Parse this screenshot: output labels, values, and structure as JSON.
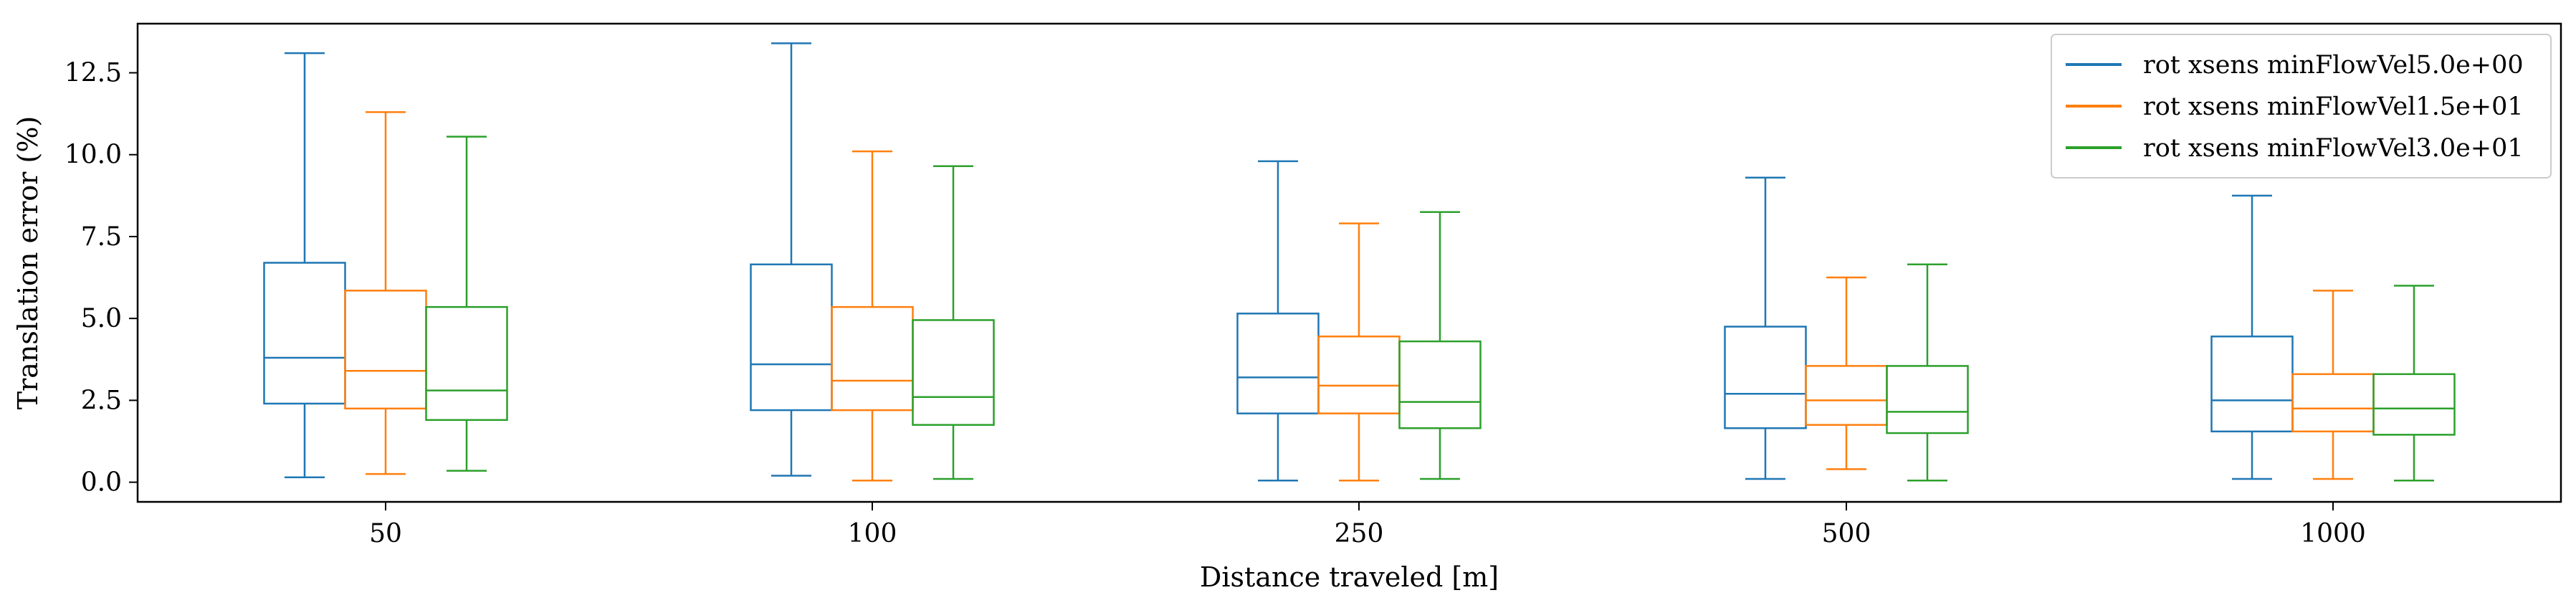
{
  "chart_data": {
    "type": "box",
    "xlabel": "Distance traveled [m]",
    "ylabel": "Translation error (%)",
    "ylim": [
      -0.6,
      14.0
    ],
    "yticks": [
      "0.0",
      "2.5",
      "5.0",
      "7.5",
      "10.0",
      "12.5"
    ],
    "categories": [
      "50",
      "100",
      "250",
      "500",
      "1000"
    ],
    "legend_position": "top-right",
    "grid": false,
    "series": [
      {
        "name": "rot xsens minFlowVel5.0e+00",
        "color": "#1f77b4",
        "boxes": [
          {
            "whisker_low": 0.15,
            "q1": 2.4,
            "median": 3.8,
            "q3": 6.7,
            "whisker_high": 13.1
          },
          {
            "whisker_low": 0.2,
            "q1": 2.2,
            "median": 3.6,
            "q3": 6.65,
            "whisker_high": 13.4
          },
          {
            "whisker_low": 0.05,
            "q1": 2.1,
            "median": 3.2,
            "q3": 5.15,
            "whisker_high": 9.8
          },
          {
            "whisker_low": 0.1,
            "q1": 1.65,
            "median": 2.7,
            "q3": 4.75,
            "whisker_high": 9.3
          },
          {
            "whisker_low": 0.1,
            "q1": 1.55,
            "median": 2.5,
            "q3": 4.45,
            "whisker_high": 8.75
          }
        ]
      },
      {
        "name": "rot xsens minFlowVel1.5e+01",
        "color": "#ff7f0e",
        "boxes": [
          {
            "whisker_low": 0.25,
            "q1": 2.25,
            "median": 3.4,
            "q3": 5.85,
            "whisker_high": 11.3
          },
          {
            "whisker_low": 0.05,
            "q1": 2.2,
            "median": 3.1,
            "q3": 5.35,
            "whisker_high": 10.1
          },
          {
            "whisker_low": 0.05,
            "q1": 2.1,
            "median": 2.95,
            "q3": 4.45,
            "whisker_high": 7.9
          },
          {
            "whisker_low": 0.4,
            "q1": 1.75,
            "median": 2.5,
            "q3": 3.55,
            "whisker_high": 6.25
          },
          {
            "whisker_low": 0.1,
            "q1": 1.55,
            "median": 2.25,
            "q3": 3.3,
            "whisker_high": 5.85
          }
        ]
      },
      {
        "name": "rot xsens minFlowVel3.0e+01",
        "color": "#2ca02c",
        "boxes": [
          {
            "whisker_low": 0.35,
            "q1": 1.9,
            "median": 2.8,
            "q3": 5.35,
            "whisker_high": 10.55
          },
          {
            "whisker_low": 0.1,
            "q1": 1.75,
            "median": 2.6,
            "q3": 4.95,
            "whisker_high": 9.65
          },
          {
            "whisker_low": 0.1,
            "q1": 1.65,
            "median": 2.45,
            "q3": 4.3,
            "whisker_high": 8.25
          },
          {
            "whisker_low": 0.05,
            "q1": 1.5,
            "median": 2.15,
            "q3": 3.55,
            "whisker_high": 6.65
          },
          {
            "whisker_low": 0.05,
            "q1": 1.45,
            "median": 2.25,
            "q3": 3.3,
            "whisker_high": 6.0
          }
        ]
      }
    ]
  }
}
